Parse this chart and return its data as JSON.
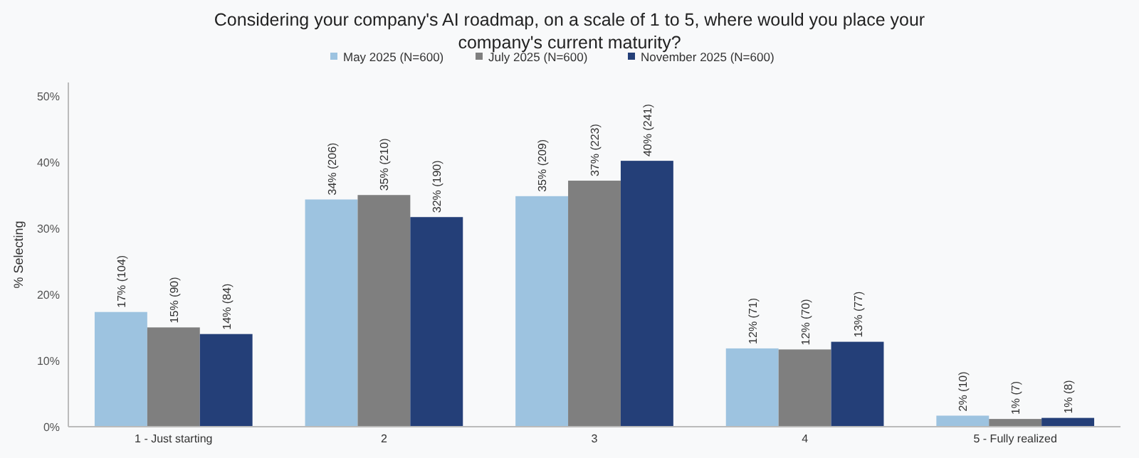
{
  "chart_data": {
    "type": "bar",
    "title": "Considering your company's AI roadmap, on a scale of 1 to 5, where would you place your company's current maturity?",
    "ylabel": "% Selecting",
    "categories": [
      "1 - Just starting",
      "2",
      "3",
      "4",
      "5 - Fully realized"
    ],
    "series": [
      {
        "name": "May 2025 (N=600)",
        "color": "#9dc3e0",
        "values": [
          17.33,
          34.33,
          34.83,
          11.83,
          1.67
        ],
        "value_labels": [
          "17% (104)",
          "34% (206)",
          "35% (209)",
          "12% (71)",
          "2% (10)"
        ]
      },
      {
        "name": "July 2025 (N=600)",
        "color": "#7f7f7f",
        "values": [
          15,
          35,
          37.17,
          11.67,
          1.17
        ],
        "value_labels": [
          "15% (90)",
          "35% (210)",
          "37% (223)",
          "12% (70)",
          "1% (7)"
        ]
      },
      {
        "name": "November 2025 (N=600)",
        "color": "#243f78",
        "values": [
          14,
          31.67,
          40.17,
          12.83,
          1.33
        ],
        "value_labels": [
          "14% (84)",
          "32% (190)",
          "40% (241)",
          "13% (77)",
          "1% (8)"
        ]
      }
    ],
    "ylim": [
      0,
      52
    ],
    "yticks": [
      {
        "value": 0,
        "label": "0%"
      },
      {
        "value": 10,
        "label": "10%"
      },
      {
        "value": 20,
        "label": "20%"
      },
      {
        "value": 30,
        "label": "30%"
      },
      {
        "value": 40,
        "label": "40%"
      },
      {
        "value": 50,
        "label": "50%"
      }
    ],
    "grid": false,
    "legend": "top"
  }
}
